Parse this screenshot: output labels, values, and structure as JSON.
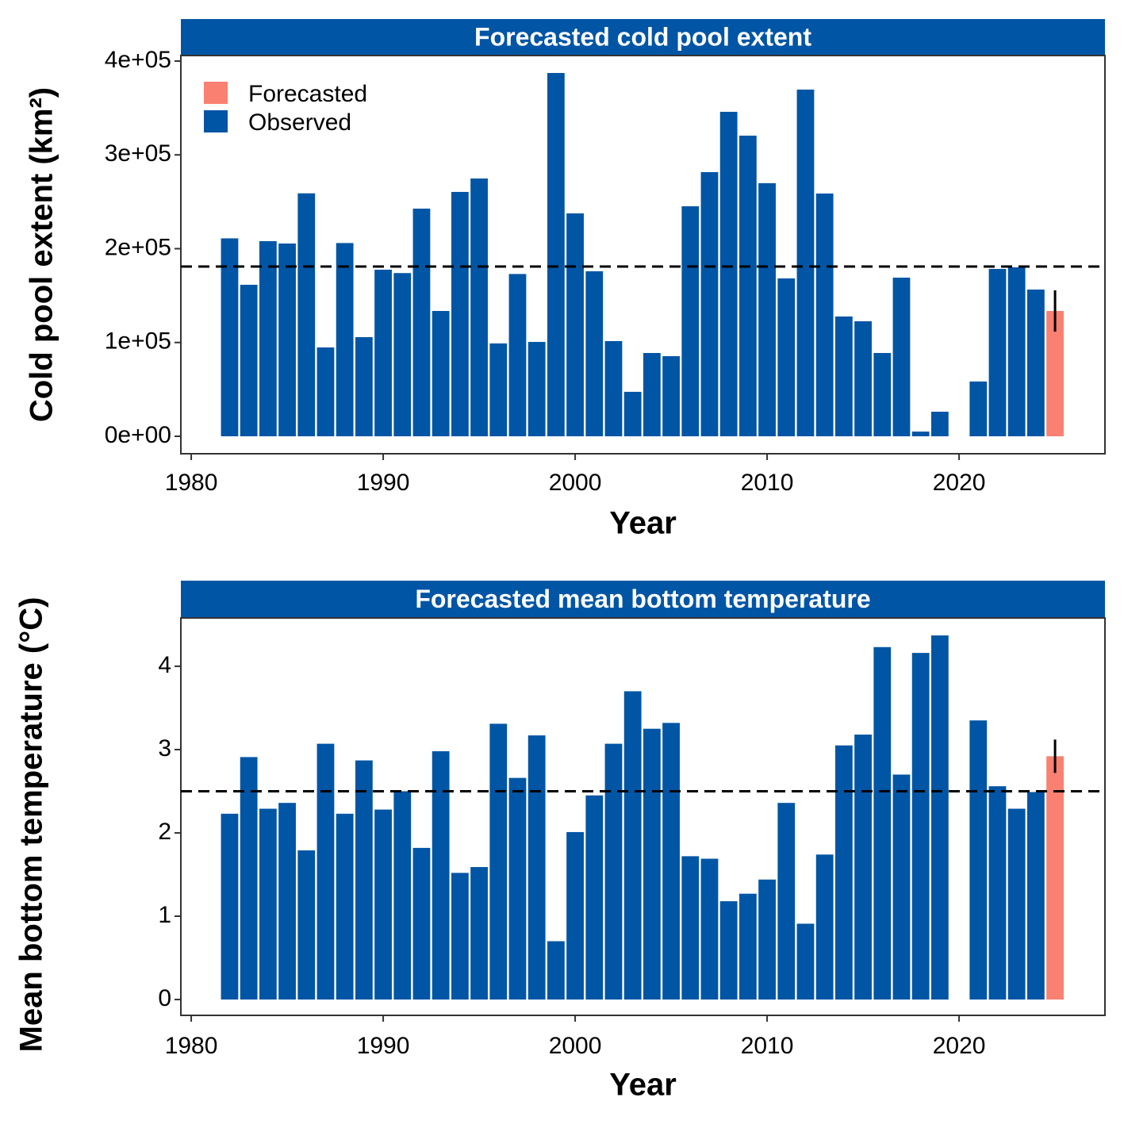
{
  "chart_data": [
    {
      "type": "bar",
      "title": "Forecasted cold pool extent",
      "xlabel": "Year",
      "ylabel": "Cold pool extent (km²)",
      "xlim": [
        1979.46,
        2027.6
      ],
      "xticks": [
        1980,
        1990,
        2000,
        2010,
        2020
      ],
      "ylim": [
        -18600,
        405900
      ],
      "yticks": [
        {
          "value": 0,
          "label": "0e+00"
        },
        {
          "value": 100000,
          "label": "1e+05"
        },
        {
          "value": 200000,
          "label": "2e+05"
        },
        {
          "value": 300000,
          "label": "3e+05"
        },
        {
          "value": 400000,
          "label": "4e+05"
        }
      ],
      "hline": 181000,
      "legend": "top-left",
      "series": [
        {
          "name": "Forecasted",
          "color": "#fa8072",
          "x": [
            2025
          ],
          "values": [
            133600
          ],
          "errors": [
            22000
          ]
        },
        {
          "name": "Observed",
          "color": "#0055a4",
          "x": [
            1982,
            1983,
            1984,
            1985,
            1986,
            1987,
            1988,
            1989,
            1990,
            1991,
            1992,
            1993,
            1994,
            1995,
            1996,
            1997,
            1998,
            1999,
            2000,
            2001,
            2002,
            2003,
            2004,
            2005,
            2006,
            2007,
            2008,
            2009,
            2010,
            2011,
            2012,
            2013,
            2014,
            2015,
            2016,
            2017,
            2018,
            2019,
            2021,
            2022,
            2023,
            2024
          ],
          "values": [
            211000,
            161500,
            208000,
            205500,
            259000,
            94700,
            206000,
            105700,
            177600,
            174000,
            242700,
            133600,
            260500,
            274800,
            99000,
            173000,
            100600,
            387300,
            237600,
            175900,
            101500,
            47400,
            88800,
            85400,
            245200,
            281600,
            345900,
            320500,
            269800,
            168300,
            369600,
            258800,
            127700,
            122600,
            88800,
            169100,
            5000,
            26200,
            58400,
            178400,
            180100,
            156400
          ]
        }
      ]
    },
    {
      "type": "bar",
      "title": "Forecasted mean bottom temperature",
      "xlabel": "Year",
      "ylabel": "Mean bottom temperature (°C)",
      "xlim": [
        1979.46,
        2027.6
      ],
      "xticks": [
        1980,
        1990,
        2000,
        2010,
        2020
      ],
      "ylim": [
        -0.19,
        4.58
      ],
      "yticks": [
        0,
        1,
        2,
        3,
        4
      ],
      "hline": 2.5,
      "series": [
        {
          "name": "Forecasted",
          "color": "#fa8072",
          "x": [
            2025
          ],
          "values": [
            2.92
          ],
          "errors": [
            0.2
          ]
        },
        {
          "name": "Observed",
          "color": "#0055a4",
          "x": [
            1982,
            1983,
            1984,
            1985,
            1986,
            1987,
            1988,
            1989,
            1990,
            1991,
            1992,
            1993,
            1994,
            1995,
            1996,
            1997,
            1998,
            1999,
            2000,
            2001,
            2002,
            2003,
            2004,
            2005,
            2006,
            2007,
            2008,
            2009,
            2010,
            2011,
            2012,
            2013,
            2014,
            2015,
            2016,
            2017,
            2018,
            2019,
            2021,
            2022,
            2023,
            2024
          ],
          "values": [
            2.23,
            2.91,
            2.29,
            2.36,
            1.79,
            3.07,
            2.23,
            2.87,
            2.28,
            2.5,
            1.82,
            2.98,
            1.52,
            1.59,
            3.31,
            2.66,
            3.17,
            0.7,
            2.01,
            2.45,
            3.07,
            3.7,
            3.25,
            3.32,
            1.72,
            1.69,
            1.18,
            1.27,
            1.44,
            2.36,
            0.91,
            1.74,
            3.05,
            3.18,
            4.23,
            2.7,
            4.16,
            4.37,
            3.35,
            2.56,
            2.29,
            2.49
          ]
        }
      ]
    }
  ]
}
